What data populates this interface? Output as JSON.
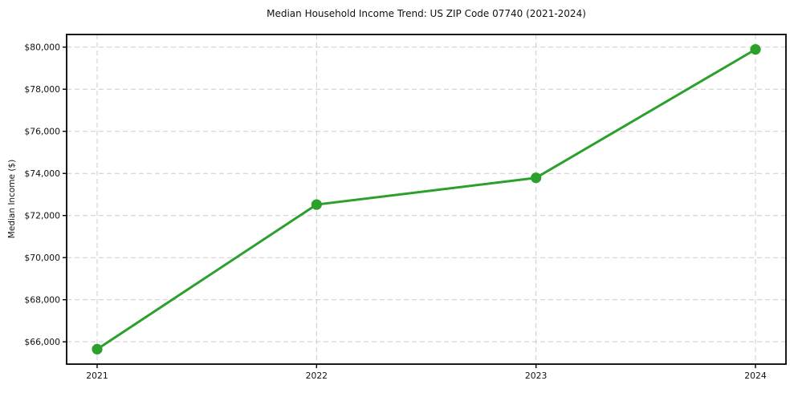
{
  "chart_data": {
    "type": "line",
    "title": "Median Household Income Trend: US ZIP Code 07740 (2021-2024)",
    "xlabel": "",
    "ylabel": "Median Income ($)",
    "categories": [
      "2021",
      "2022",
      "2023",
      "2024"
    ],
    "series": [
      {
        "name": "Median Household Income",
        "values": [
          65650,
          72520,
          73790,
          79890
        ]
      }
    ],
    "y_ticks": [
      66000,
      68000,
      70000,
      72000,
      74000,
      76000,
      78000,
      80000
    ],
    "y_tick_labels": [
      "$66,000",
      "$68,000",
      "$70,000",
      "$72,000",
      "$74,000",
      "$76,000",
      "$78,000",
      "$80,000"
    ],
    "ylim": [
      64940,
      80600
    ],
    "grid": true,
    "grid_style": "dashed",
    "legend_position": "none",
    "colors": {
      "line": "#2ca02c",
      "marker": "#2ca02c",
      "grid": "#cccccc",
      "spine": "#000000",
      "text": "#111111",
      "background": "#ffffff"
    },
    "marker": "circle",
    "marker_radius": 6.6,
    "line_width": 3
  }
}
